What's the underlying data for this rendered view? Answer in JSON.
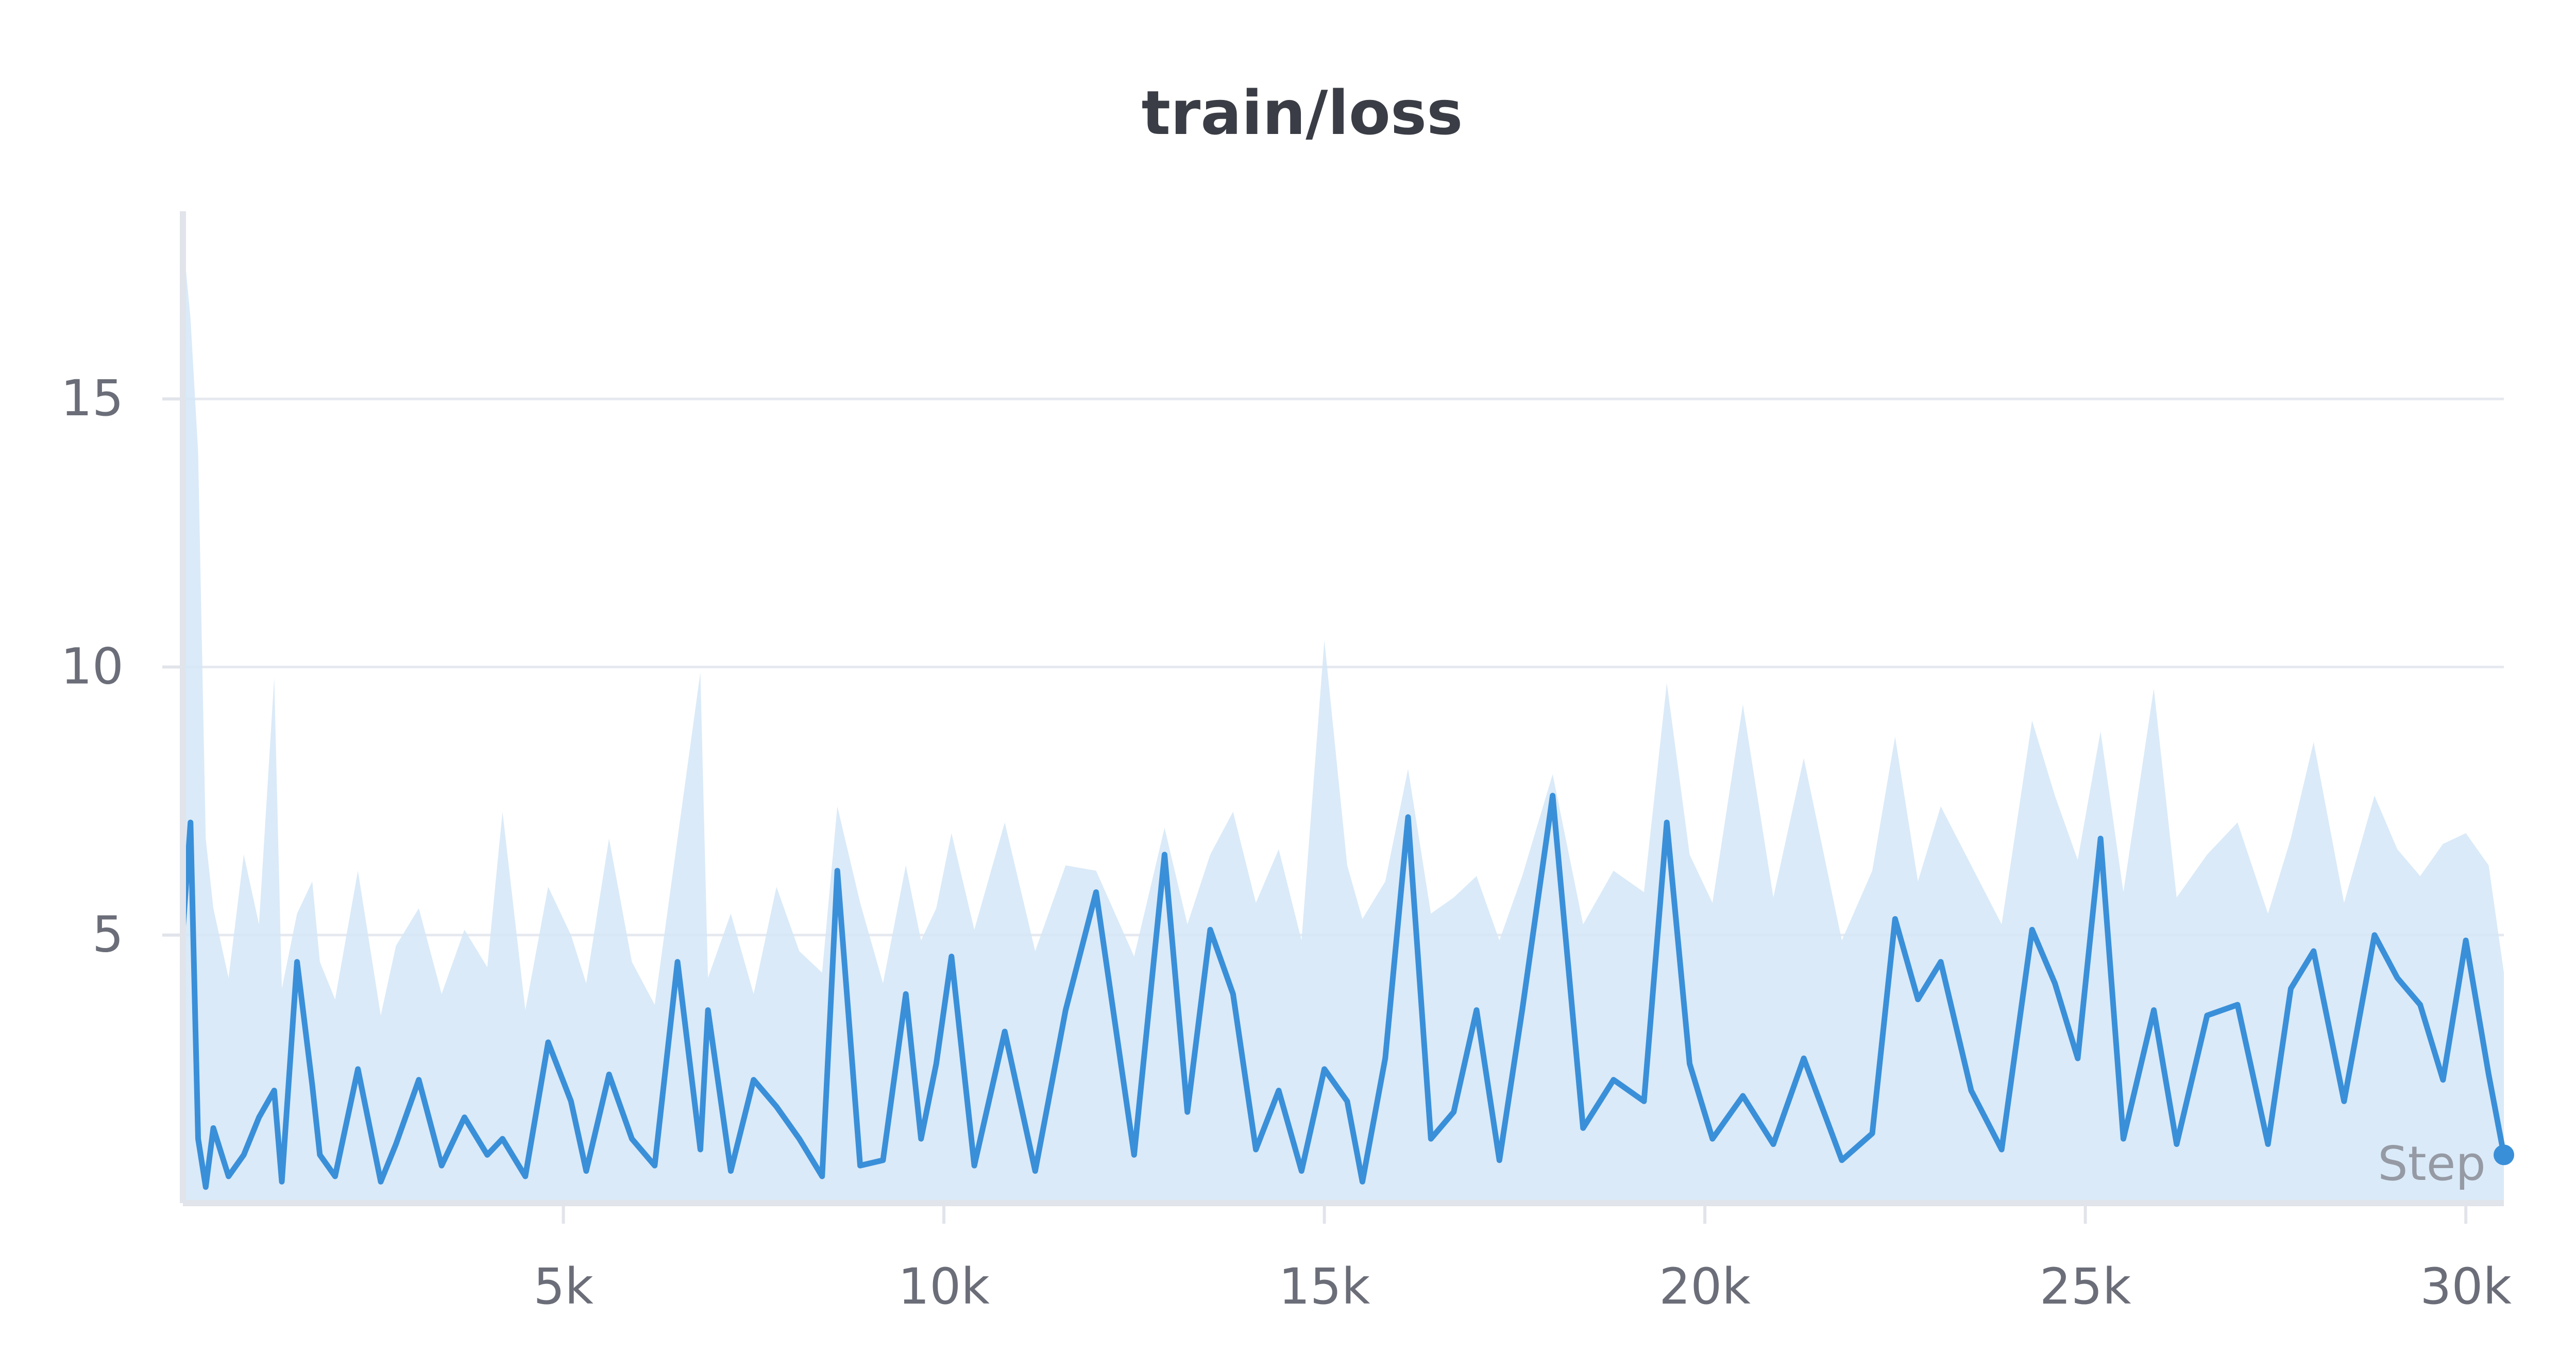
{
  "chart_data": {
    "type": "line",
    "title": "train/loss",
    "xlabel": "Step",
    "ylabel": "",
    "xlim": [
      0,
      30500
    ],
    "ylim": [
      0,
      18.5
    ],
    "x_ticks": [
      5000,
      10000,
      15000,
      20000,
      25000,
      30000
    ],
    "x_tick_labels": [
      "5k",
      "10k",
      "15k",
      "20k",
      "25k",
      "30k"
    ],
    "y_ticks": [
      5,
      10,
      15
    ],
    "y_tick_labels": [
      "5",
      "10",
      "15"
    ],
    "grid": true,
    "legend": "none",
    "colors": {
      "line": "#3a8fd9",
      "band": "#d3e6f7",
      "grid": "#e6e9ef",
      "axis": "#e1e4ea",
      "tick_text": "#6b6e78"
    },
    "series": [
      {
        "x": [
          0,
          100,
          200,
          300,
          400,
          600,
          800,
          1000,
          1200,
          1300,
          1500,
          1700,
          1800,
          2000,
          2300,
          2600,
          2800,
          3100,
          3400,
          3700,
          4000,
          4200,
          4500,
          4800,
          5100,
          5300,
          5600,
          5900,
          6200,
          6500,
          6800,
          6900,
          7200,
          7500,
          7800,
          8100,
          8400,
          8600,
          8900,
          9200,
          9500,
          9700,
          9900,
          10100,
          10400,
          10800,
          11200,
          11600,
          12000,
          12500,
          12900,
          13200,
          13500,
          13800,
          14100,
          14400,
          14700,
          15000,
          15300,
          15500,
          15800,
          16100,
          16400,
          16700,
          17000,
          17300,
          17600,
          18000,
          18400,
          18800,
          19200,
          19500,
          19800,
          20100,
          20500,
          20900,
          21300,
          21800,
          22200,
          22500,
          22800,
          23100,
          23500,
          23900,
          24300,
          24600,
          24900,
          25200,
          25500,
          25900,
          26200,
          26600,
          27000,
          27400,
          27700,
          28000,
          28400,
          28800,
          29100,
          29400,
          29700,
          30000,
          30300,
          30500
        ],
        "y": [
          5.1,
          7.1,
          1.2,
          0.3,
          1.4,
          0.5,
          0.9,
          1.6,
          2.1,
          0.4,
          4.5,
          2.2,
          0.9,
          0.5,
          2.5,
          0.4,
          1.1,
          2.3,
          0.7,
          1.6,
          0.9,
          1.2,
          0.5,
          3.0,
          1.9,
          0.6,
          2.4,
          1.2,
          0.7,
          4.5,
          1.0,
          3.6,
          0.6,
          2.3,
          1.8,
          1.2,
          0.5,
          6.2,
          0.7,
          0.8,
          3.9,
          1.2,
          2.6,
          4.6,
          0.7,
          3.2,
          0.6,
          3.6,
          5.8,
          0.9,
          6.5,
          1.7,
          5.1,
          3.9,
          1.0,
          2.1,
          0.6,
          2.5,
          1.9,
          0.4,
          2.7,
          7.2,
          1.2,
          1.7,
          3.6,
          0.8,
          3.6,
          7.6,
          1.4,
          2.3,
          1.9,
          7.1,
          2.6,
          1.2,
          2.0,
          1.1,
          2.7,
          0.8,
          1.3,
          5.3,
          3.8,
          4.5,
          2.1,
          1.0,
          5.1,
          4.1,
          2.7,
          6.8,
          1.2,
          3.6,
          1.1,
          3.5,
          3.7,
          1.1,
          4.0,
          4.7,
          1.9,
          5.0,
          4.2,
          3.7,
          2.3,
          4.9,
          2.4,
          0.9
        ],
        "band_upper": [
          18.0,
          16.5,
          14.0,
          6.8,
          5.5,
          4.2,
          6.5,
          5.2,
          9.8,
          4.0,
          5.4,
          6.0,
          4.5,
          3.8,
          6.2,
          3.5,
          4.8,
          5.5,
          3.9,
          5.1,
          4.4,
          7.3,
          3.6,
          5.9,
          5.0,
          4.1,
          6.8,
          4.5,
          3.7,
          6.8,
          9.9,
          4.2,
          5.4,
          3.9,
          5.9,
          4.7,
          4.3,
          7.4,
          5.6,
          4.1,
          6.3,
          4.9,
          5.5,
          6.9,
          5.1,
          7.1,
          4.7,
          6.3,
          6.2,
          4.6,
          7.0,
          5.2,
          6.5,
          7.3,
          5.6,
          6.6,
          4.9,
          10.5,
          6.3,
          5.3,
          6.0,
          8.1,
          5.4,
          5.7,
          6.1,
          4.9,
          6.1,
          8.0,
          5.2,
          6.2,
          5.8,
          9.7,
          6.5,
          5.6,
          9.3,
          5.7,
          8.3,
          4.9,
          6.2,
          8.7,
          6.0,
          7.4,
          6.3,
          5.2,
          9.0,
          7.6,
          6.4,
          8.8,
          5.8,
          9.6,
          5.7,
          6.5,
          7.1,
          5.4,
          6.8,
          8.6,
          5.6,
          7.6,
          6.6,
          6.1,
          6.7,
          6.9,
          6.3,
          4.3
        ],
        "band_lower": [
          0.05,
          0.05,
          0.05,
          0.05,
          0.05,
          0.05,
          0.05,
          0.05,
          0.05,
          0.05,
          0.05,
          0.05,
          0.05,
          0.05,
          0.05,
          0.05,
          0.05,
          0.05,
          0.05,
          0.05,
          0.05,
          0.05,
          0.05,
          0.05,
          0.05,
          0.05,
          0.05,
          0.05,
          0.05,
          0.05,
          0.05,
          0.05,
          0.05,
          0.05,
          0.05,
          0.05,
          0.05,
          0.05,
          0.05,
          0.05,
          0.05,
          0.05,
          0.05,
          0.05,
          0.05,
          0.05,
          0.05,
          0.05,
          0.05,
          0.05,
          0.05,
          0.05,
          0.05,
          0.05,
          0.05,
          0.05,
          0.05,
          0.05,
          0.05,
          0.05,
          0.05,
          0.05,
          0.05,
          0.05,
          0.05,
          0.05,
          0.05,
          0.05,
          0.05,
          0.05,
          0.05,
          0.05,
          0.05,
          0.05,
          0.05,
          0.05,
          0.05,
          0.05,
          0.05,
          0.05,
          0.05,
          0.05,
          0.05,
          0.05,
          0.05,
          0.05,
          0.05,
          0.05,
          0.05,
          0.05,
          0.05,
          0.05,
          0.05,
          0.05,
          0.05,
          0.05,
          0.05,
          0.05,
          0.05,
          0.05,
          0.05,
          0.05,
          0.05,
          0.05
        ]
      }
    ]
  }
}
